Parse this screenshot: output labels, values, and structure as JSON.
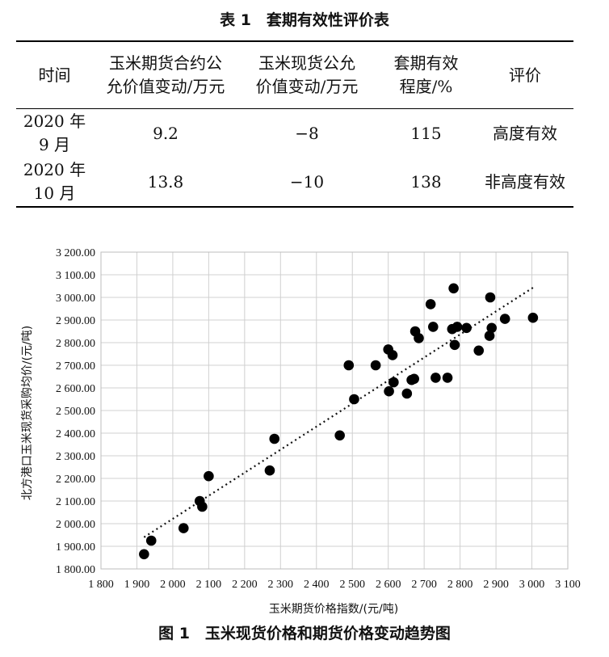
{
  "table": {
    "title": "表 1　套期有效性评价表",
    "headers": [
      [
        "时间"
      ],
      [
        "玉米期货合约公",
        "允价值变动/万元"
      ],
      [
        "玉米现货公允",
        "价值变动/万元"
      ],
      [
        "套期有效",
        "程度/%"
      ],
      [
        "评价"
      ]
    ],
    "rows": [
      {
        "time": [
          "2020 年",
          "9 月"
        ],
        "futures": "9.2",
        "spot": "−8",
        "degree": "115",
        "rating": "高度有效"
      },
      {
        "time": [
          "2020 年",
          "10 月"
        ],
        "futures": "13.8",
        "spot": "−10",
        "degree": "138",
        "rating": "非高度有效"
      }
    ]
  },
  "chart_data": {
    "type": "scatter",
    "caption": "图 1　玉米现货价格和期货价格变动趋势图",
    "xlabel": "玉米期货价格指数/(元/吨)",
    "ylabel": "北方港口玉米现货采购均价/(元/吨)",
    "xlim": [
      1800,
      3100
    ],
    "ylim": [
      1800,
      3200
    ],
    "x_ticks": [
      "1 800",
      "1 900",
      "2 000",
      "2 100",
      "2 200",
      "2 300",
      "2 400",
      "2 500",
      "2 600",
      "2 700",
      "2 800",
      "2 900",
      "3 000",
      "3 100"
    ],
    "y_ticks": [
      "1 800.00",
      "1 900.00",
      "2 000.00",
      "2 100.00",
      "2 200.00",
      "2 300.00",
      "2 400.00",
      "2 500.00",
      "2 600.00",
      "2 700.00",
      "2 800.00",
      "2 900.00",
      "3 000.00",
      "3 100.00",
      "3 200.00"
    ],
    "grid": true,
    "legend": "none",
    "trendline": {
      "style": "dotted",
      "x": [
        1920,
        3005
      ],
      "y": [
        1940,
        3045
      ]
    },
    "points": [
      {
        "x": 1920,
        "y": 1865
      },
      {
        "x": 1940,
        "y": 1925
      },
      {
        "x": 2030,
        "y": 1980
      },
      {
        "x": 2075,
        "y": 2100
      },
      {
        "x": 2082,
        "y": 2075
      },
      {
        "x": 2100,
        "y": 2210
      },
      {
        "x": 2270,
        "y": 2235
      },
      {
        "x": 2283,
        "y": 2375
      },
      {
        "x": 2465,
        "y": 2390
      },
      {
        "x": 2490,
        "y": 2700
      },
      {
        "x": 2505,
        "y": 2550
      },
      {
        "x": 2565,
        "y": 2700
      },
      {
        "x": 2600,
        "y": 2770
      },
      {
        "x": 2602,
        "y": 2585
      },
      {
        "x": 2612,
        "y": 2745
      },
      {
        "x": 2615,
        "y": 2625
      },
      {
        "x": 2652,
        "y": 2575
      },
      {
        "x": 2665,
        "y": 2635
      },
      {
        "x": 2672,
        "y": 2640
      },
      {
        "x": 2675,
        "y": 2850
      },
      {
        "x": 2685,
        "y": 2820
      },
      {
        "x": 2718,
        "y": 2970
      },
      {
        "x": 2725,
        "y": 2870
      },
      {
        "x": 2732,
        "y": 2645
      },
      {
        "x": 2765,
        "y": 2645
      },
      {
        "x": 2778,
        "y": 2860
      },
      {
        "x": 2782,
        "y": 3040
      },
      {
        "x": 2785,
        "y": 2790
      },
      {
        "x": 2792,
        "y": 2870
      },
      {
        "x": 2818,
        "y": 2865
      },
      {
        "x": 2852,
        "y": 2765
      },
      {
        "x": 2882,
        "y": 2830
      },
      {
        "x": 2884,
        "y": 3000
      },
      {
        "x": 2888,
        "y": 2865
      },
      {
        "x": 2925,
        "y": 2905
      },
      {
        "x": 3003,
        "y": 2910
      }
    ]
  }
}
